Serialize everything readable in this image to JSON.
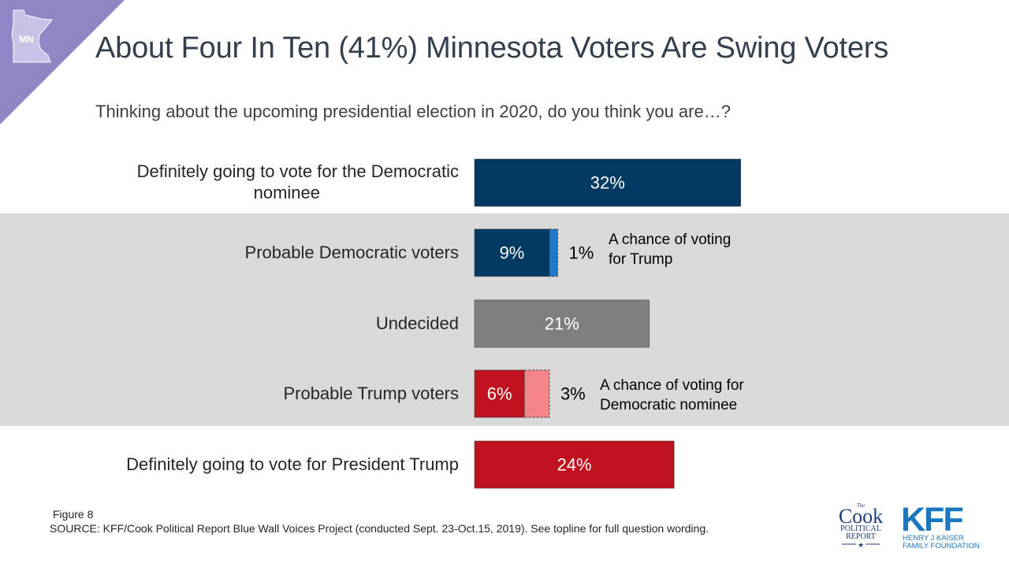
{
  "corner": {
    "state_label": "MN"
  },
  "title": "About Four In Ten (41%) Minnesota Voters Are Swing Voters",
  "subtitle": "Thinking about the upcoming presidential election in 2020, do you think you are…?",
  "chart_data": {
    "type": "bar",
    "orientation": "horizontal",
    "stacked": true,
    "categories": [
      "Definitely going to vote for the Democratic nominee",
      "Probable Democratic voters",
      "Undecided",
      "Probable Trump voters",
      "Definitely going to vote for President Trump"
    ],
    "segments": [
      [
        {
          "value": 32,
          "label": "32%",
          "color": "#003a63"
        }
      ],
      [
        {
          "value": 9,
          "label": "9%",
          "color": "#003a63"
        },
        {
          "value": 1,
          "label": "1%",
          "color": "#1f78c8",
          "dashed": true,
          "note": "A chance of voting for Trump"
        }
      ],
      [
        {
          "value": 21,
          "label": "21%",
          "color": "#7f7f7f"
        }
      ],
      [
        {
          "value": 6,
          "label": "6%",
          "color": "#c0111f"
        },
        {
          "value": 3,
          "label": "3%",
          "color": "#f4858b",
          "dashed": true,
          "note": "A chance of voting for Democratic nominee"
        }
      ],
      [
        {
          "value": 24,
          "label": "24%",
          "color": "#c0111f"
        }
      ]
    ],
    "highlight_band": {
      "from_category": 1,
      "to_category": 3,
      "color": "#d9d9d9"
    }
  },
  "labels": {
    "cat0_line1": "Definitely going to vote for the Democratic",
    "cat0_line2": "nominee",
    "cat1": "Probable Democratic voters",
    "cat2": "Undecided",
    "cat3": "Probable Trump voters",
    "cat4": "Definitely going to vote for President Trump",
    "note1_line1": "A chance of voting",
    "note1_line2": "for Trump",
    "note3_line1": "A chance of voting for",
    "note3_line2": "Democratic nominee"
  },
  "footer": {
    "figure": "Figure 8",
    "source": "SOURCE: KFF/Cook Political Report Blue Wall Voices Project (conducted Sept. 23-Oct.15, 2019). See topline for full question wording."
  },
  "logos": {
    "cook_the": "The",
    "cook_name": "Cook",
    "cook_line1": "POLITICAL",
    "cook_line2": "REPORT",
    "kff": "KFF",
    "kff_line1": "HENRY J KAISER",
    "kff_line2": "FAMILY FOUNDATION"
  }
}
